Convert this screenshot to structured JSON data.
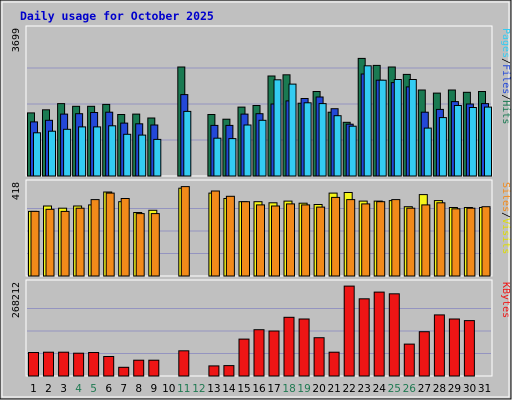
{
  "chart_data": {
    "type": "bar",
    "title": "Daily usage for October 2025",
    "categories": [
      "1",
      "2",
      "3",
      "4",
      "5",
      "6",
      "7",
      "8",
      "9",
      "10",
      "11",
      "12",
      "13",
      "14",
      "15",
      "16",
      "17",
      "18",
      "19",
      "20",
      "21",
      "22",
      "23",
      "24",
      "25",
      "26",
      "27",
      "28",
      "29",
      "30",
      "31"
    ],
    "weekend_days": [
      4,
      5,
      11,
      12,
      18,
      19,
      25,
      26
    ],
    "panels": [
      {
        "id": "hits",
        "max_label": "3699",
        "ymax": 3699,
        "legend": [
          "Pages",
          "/",
          "Files",
          "/",
          "Hits"
        ],
        "series": [
          {
            "name": "Hits",
            "color": "#1a7a52",
            "values": [
              1620,
              1700,
              1860,
              1790,
              1790,
              1840,
              1580,
              1590,
              1490,
              0,
              2800,
              0,
              1580,
              1460,
              1770,
              1810,
              2570,
              2600,
              1870,
              2170,
              1640,
              1380,
              3020,
              2840,
              2800,
              2610,
              2210,
              2130,
              2210,
              2150,
              2170
            ]
          },
          {
            "name": "Files",
            "color": "#2348d8",
            "values": [
              1390,
              1430,
              1590,
              1600,
              1630,
              1640,
              1360,
              1340,
              1310,
              0,
              2090,
              0,
              1300,
              1300,
              1590,
              1600,
              1850,
              1930,
              1990,
              2030,
              1730,
              1330,
              2620,
              2460,
              2400,
              2290,
              1640,
              1710,
              1910,
              1850,
              1860
            ]
          },
          {
            "name": "Pages",
            "color": "#33ccf2",
            "values": [
              1110,
              1150,
              1200,
              1260,
              1260,
              1290,
              1070,
              1050,
              940,
              0,
              1660,
              0,
              970,
              960,
              1310,
              1430,
              2470,
              2360,
              1880,
              1860,
              1550,
              1280,
              2830,
              2460,
              2480,
              2480,
              1230,
              1500,
              1810,
              1760,
              1770
            ]
          }
        ]
      },
      {
        "id": "visits",
        "max_label": "418",
        "ymax": 418,
        "legend": [
          "Sites",
          "/",
          "Visits"
        ],
        "series": [
          {
            "name": "Visits",
            "color": "#f5f51a",
            "values": [
              300,
              325,
              315,
              325,
              330,
              390,
              345,
              295,
              305,
              0,
              408,
              0,
              385,
              360,
              345,
              345,
              340,
              348,
              338,
              332,
              385,
              388,
              348,
              348,
              350,
              322,
              378,
              350,
              318,
              318,
              318
            ]
          },
          {
            "name": "Sites",
            "color": "#f28a1a",
            "values": [
              300,
              310,
              300,
              315,
              355,
              385,
              360,
              290,
              290,
              0,
              415,
              0,
              395,
              370,
              345,
              330,
              325,
              335,
              330,
              320,
              365,
              355,
              335,
              345,
              355,
              315,
              330,
              340,
              312,
              315,
              322
            ]
          }
        ]
      },
      {
        "id": "kbytes",
        "max_label": "268212",
        "ymax": 268212,
        "legend": [
          "KBytes"
        ],
        "series": [
          {
            "name": "KBytes",
            "color": "#ee1515",
            "values": [
              70000,
              71000,
              71000,
              68000,
              70000,
              58000,
              26000,
              47000,
              47000,
              0,
              75000,
              0,
              30000,
              31000,
              110000,
              138000,
              134000,
              175000,
              170000,
              114000,
              71000,
              268000,
              230000,
              250000,
              245000,
              95000,
              132000,
              182000,
              170000,
              165000,
              0
            ]
          }
        ]
      }
    ],
    "colors": {
      "background": "#c0c0c0",
      "plot_border": "#ffffff",
      "grid": "#9494c0",
      "title": "#0000cc",
      "axis_text": "#000000",
      "weekend_text": "#207a52",
      "legend_pages": "#33ccf2",
      "legend_files": "#2348d8",
      "legend_hits": "#1a7a52",
      "legend_sites": "#f28a1a",
      "legend_visits": "#dddd00",
      "legend_kbytes": "#ee1515"
    }
  }
}
